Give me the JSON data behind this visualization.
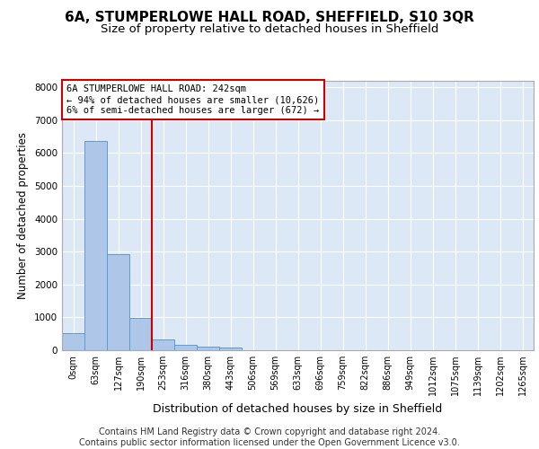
{
  "title1": "6A, STUMPERLOWE HALL ROAD, SHEFFIELD, S10 3QR",
  "title2": "Size of property relative to detached houses in Sheffield",
  "xlabel": "Distribution of detached houses by size in Sheffield",
  "ylabel": "Number of detached properties",
  "footnote": "Contains HM Land Registry data © Crown copyright and database right 2024.\nContains public sector information licensed under the Open Government Licence v3.0.",
  "bar_labels": [
    "0sqm",
    "63sqm",
    "127sqm",
    "190sqm",
    "253sqm",
    "316sqm",
    "380sqm",
    "443sqm",
    "506sqm",
    "569sqm",
    "633sqm",
    "696sqm",
    "759sqm",
    "822sqm",
    "886sqm",
    "949sqm",
    "1012sqm",
    "1075sqm",
    "1139sqm",
    "1202sqm",
    "1265sqm"
  ],
  "bar_values": [
    530,
    6380,
    2920,
    985,
    340,
    155,
    105,
    75,
    0,
    0,
    0,
    0,
    0,
    0,
    0,
    0,
    0,
    0,
    0,
    0,
    0
  ],
  "bar_color": "#aec6e8",
  "bar_edge_color": "#5b9bd5",
  "vline_x": 4,
  "vline_color": "#cc0000",
  "annotation_text": "6A STUMPERLOWE HALL ROAD: 242sqm\n← 94% of detached houses are smaller (10,626)\n6% of semi-detached houses are larger (672) →",
  "annotation_box_color": "#cc0000",
  "ylim": [
    0,
    8200
  ],
  "yticks": [
    0,
    1000,
    2000,
    3000,
    4000,
    5000,
    6000,
    7000,
    8000
  ],
  "bg_color": "#dce8f5",
  "grid_color": "#ffffff",
  "title1_fontsize": 11,
  "title2_fontsize": 9.5,
  "xlabel_fontsize": 9,
  "ylabel_fontsize": 8.5,
  "footnote_fontsize": 7.0
}
